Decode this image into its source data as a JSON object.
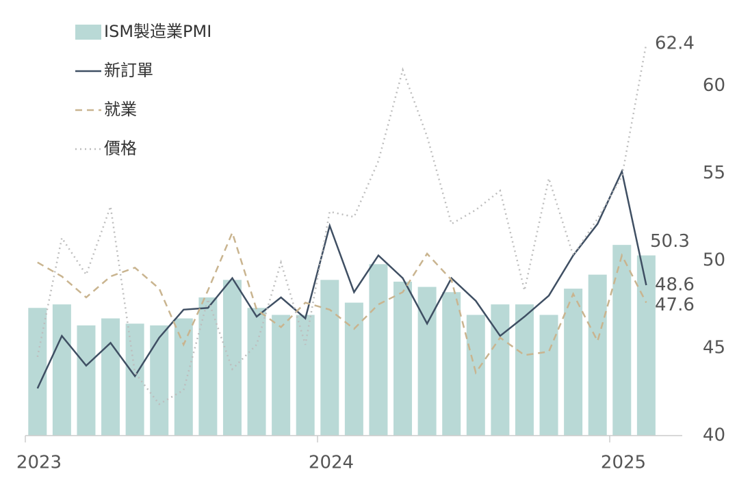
{
  "chart_data": {
    "type": "bar-line",
    "categories": [
      "2023",
      null,
      null,
      null,
      null,
      null,
      null,
      null,
      null,
      null,
      null,
      null,
      "2024",
      null,
      null,
      null,
      null,
      null,
      null,
      null,
      null,
      null,
      null,
      null,
      "2025",
      null
    ],
    "series": [
      {
        "name": "ISM製造業PMI",
        "type": "bar",
        "color": "#b9d9d6",
        "values": [
          47.3,
          47.5,
          46.3,
          46.7,
          46.4,
          46.3,
          46.7,
          47.9,
          48.9,
          47.3,
          46.9,
          46.9,
          48.9,
          47.6,
          49.8,
          48.8,
          48.5,
          48.2,
          46.9,
          47.5,
          47.5,
          46.9,
          48.4,
          49.2,
          50.9,
          50.3
        ]
      },
      {
        "name": "新訂單",
        "type": "line",
        "color": "#3f4f63",
        "dash": "solid",
        "values": [
          42.7,
          45.7,
          44.0,
          45.3,
          43.4,
          45.6,
          47.2,
          47.3,
          49.0,
          46.8,
          47.9,
          46.7,
          52.0,
          48.2,
          50.3,
          49.0,
          46.4,
          49.0,
          47.7,
          45.7,
          46.8,
          48.0,
          50.3,
          52.1,
          55.1,
          48.6
        ]
      },
      {
        "name": "就業",
        "type": "line",
        "color": "#c9b48f",
        "dash": "dashed",
        "values": [
          49.9,
          49.1,
          47.9,
          49.1,
          49.6,
          48.4,
          45.2,
          48.3,
          51.6,
          47.2,
          46.2,
          47.6,
          47.2,
          46.1,
          47.5,
          48.2,
          50.4,
          48.9,
          43.6,
          45.6,
          44.6,
          44.8,
          48.1,
          45.4,
          50.3,
          47.6
        ]
      },
      {
        "name": "價格",
        "type": "line",
        "color": "#bdbdbd",
        "dash": "dotted",
        "values": [
          44.5,
          51.3,
          49.2,
          53.1,
          43.6,
          41.8,
          42.6,
          47.8,
          43.8,
          45.2,
          49.9,
          45.2,
          52.8,
          52.5,
          55.7,
          60.9,
          57.1,
          52.1,
          52.9,
          54.0,
          48.3,
          54.7,
          50.3,
          52.4,
          54.8,
          62.4
        ]
      }
    ],
    "ylim": [
      40,
      64
    ],
    "yticks": [
      40,
      45,
      50,
      55,
      60
    ],
    "y_axis_side": "right",
    "legend": "top-left"
  }
}
